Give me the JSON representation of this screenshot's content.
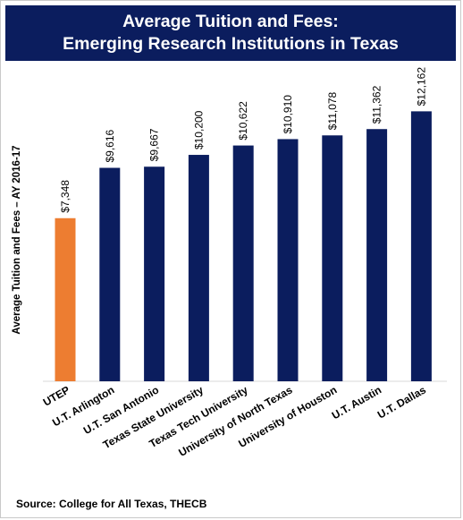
{
  "header": {
    "title_line1": "Average Tuition and Fees:",
    "title_line2": "Emerging Research Institutions in Texas"
  },
  "footer": {
    "source": "Source: College for All Texas, THECB"
  },
  "colors": {
    "banner": "#0b1d5e",
    "bar_default": "#0b1d5e",
    "bar_highlight": "#ed7d31"
  },
  "chart_data": {
    "type": "bar",
    "title": "Average Tuition and Fees: Emerging Research Institutions in Texas",
    "ylabel": "Average Tuition and Fees – AY 2016-17",
    "xlabel": "",
    "ylim": [
      0,
      12500
    ],
    "grid": false,
    "categories": [
      "UTEP",
      "U.T. Arlington",
      "U.T. San Antonio",
      "Texas State University",
      "Texas Tech University",
      "University of North Texas",
      "University of Houston",
      "U.T. Austin",
      "U.T. Dallas"
    ],
    "values": [
      7348,
      9616,
      9667,
      10200,
      10622,
      10910,
      11078,
      11362,
      12162
    ],
    "data_labels": [
      "$7,348",
      "$9,616",
      "$9,667",
      "$10,200",
      "$10,622",
      "$10,910",
      "$11,078",
      "$11,362",
      "$12,162"
    ],
    "highlight": "UTEP"
  }
}
